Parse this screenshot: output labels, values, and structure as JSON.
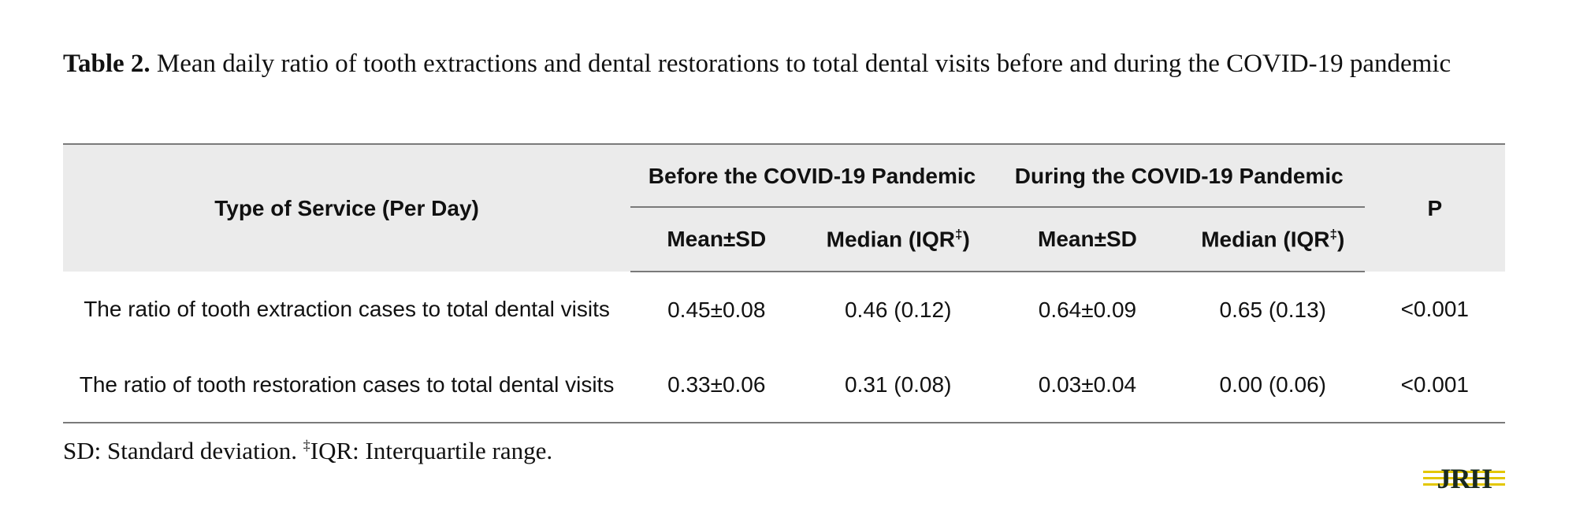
{
  "caption": {
    "label": "Table 2.",
    "text": " Mean daily ratio of tooth extractions and dental restorations to total dental visits before and during the COVID-19 pandemic"
  },
  "table": {
    "service_header": "Type of Service (Per Day)",
    "group_before": "Before the COVID-19 Pandemic",
    "group_during": "During the COVID-19 Pandemic",
    "p_header": "P",
    "mean_sd_label": "Mean±SD",
    "median_label": "Median (IQR",
    "dagger": "‡",
    "median_close": ")",
    "rows": [
      {
        "service": "The ratio of tooth extraction cases to total dental visits",
        "before_mean": "0.45±0.08",
        "before_median": "0.46 (0.12)",
        "during_mean": "0.64±0.09",
        "during_median": "0.65 (0.13)",
        "p": "<0.001"
      },
      {
        "service": "The ratio of tooth restoration cases to total dental visits",
        "before_mean": "0.33±0.06",
        "before_median": "0.31 (0.08)",
        "during_mean": "0.03±0.04",
        "during_median": "0.00 (0.06)",
        "p": "<0.001"
      }
    ]
  },
  "footnote": {
    "sd": "SD: Standard deviation. ",
    "dagger": "‡",
    "iqr": "IQR: Interquartile range."
  },
  "logo": {
    "text": "JRH",
    "color_text": "#1a2a1e",
    "color_stripes": "#e3c700"
  }
}
